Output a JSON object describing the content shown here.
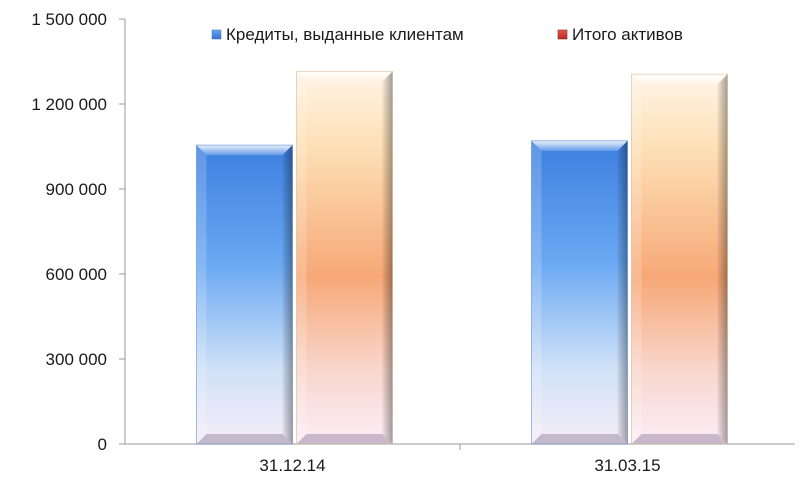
{
  "chart_data": {
    "type": "bar",
    "categories": [
      "31.12.14",
      "31.03.15"
    ],
    "series": [
      {
        "name": "Кредиты, выданные клиентам",
        "values": [
          1055000,
          1070000
        ],
        "color": "#4d8fe0"
      },
      {
        "name": "Итого активов",
        "values": [
          1315000,
          1305000
        ],
        "color": "#d9342b"
      }
    ],
    "y_ticks": [
      0,
      300000,
      600000,
      900000,
      1200000,
      1500000
    ],
    "y_tick_labels": [
      "0",
      "300 000",
      "600 000",
      "900 000",
      "1 200 000",
      "1 500 000"
    ],
    "ylim": [
      0,
      1500000
    ],
    "grid": false,
    "legend_position": "top"
  }
}
